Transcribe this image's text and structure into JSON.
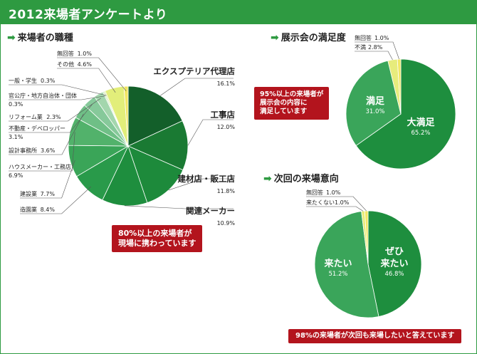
{
  "header": {
    "title": "2012来場者アンケートより"
  },
  "sections": {
    "occupation": {
      "title": "来場者の職種"
    },
    "satisfaction": {
      "title": "展示会の満足度"
    },
    "revisit": {
      "title": "次回の来場意向"
    }
  },
  "callouts": {
    "occupation": [
      "80%以上の来場者が",
      "現場に携わっています"
    ],
    "satisfaction": [
      "95%以上の来場者が",
      "展示会の内容に",
      "満足しています"
    ],
    "revisit": [
      "98%の来場者が次回も来場したいと答えています"
    ]
  },
  "colors": {
    "header": "#2e9a41",
    "callout": "#b3141d"
  },
  "chart_data": [
    {
      "type": "pie",
      "title": "来場者の職種",
      "slices": [
        {
          "label": "エクスプテリア代理店",
          "value": 16.1,
          "pct": "16.1%",
          "color": "#135f2a"
        },
        {
          "label": "工事店",
          "value": 12.0,
          "pct": "12.0%",
          "color": "#1a7a33"
        },
        {
          "label": "建材店・販工店",
          "value": 11.8,
          "pct": "11.8%",
          "color": "#1d8a3b"
        },
        {
          "label": "関連メーカー",
          "value": 10.9,
          "pct": "10.9%",
          "color": "#1e8e3e"
        },
        {
          "label": "造園業",
          "value": 8.4,
          "pct": "8.4%",
          "color": "#299a4a"
        },
        {
          "label": "建設業",
          "value": 7.7,
          "pct": "7.7%",
          "color": "#3aa558"
        },
        {
          "label": "ハウスメーカー・工務店",
          "value": 6.9,
          "pct": "6.9%",
          "color": "#52b26b"
        },
        {
          "label": "設計事務所",
          "value": 3.6,
          "pct": "3.6%",
          "color": "#6fbf86"
        },
        {
          "label": "不動産・デベロッパー",
          "value": 3.1,
          "pct": "3.1%",
          "color": "#86c99a"
        },
        {
          "label": "リフォーム業",
          "value": 2.3,
          "pct": "2.3%",
          "color": "#a3d6ad"
        },
        {
          "label": "官公庁・地方自治体・団体",
          "value": 0.3,
          "pct": "0.3%",
          "color": "#c4e3b8"
        },
        {
          "label": "一般・学生",
          "value": 0.3,
          "pct": "0.3%",
          "color": "#d7ec9a"
        },
        {
          "label": "その他",
          "value": 4.6,
          "pct": "4.6%",
          "color": "#e2ee7a"
        },
        {
          "label": "無回答",
          "value": 1.0,
          "pct": "1.0%",
          "color": "#f1e663"
        }
      ]
    },
    {
      "type": "pie",
      "title": "展示会の満足度",
      "slices": [
        {
          "label": "大満足",
          "value": 65.2,
          "pct": "65.2%",
          "color": "#1e8e3e"
        },
        {
          "label": "満足",
          "value": 31.0,
          "pct": "31.0%",
          "color": "#3aa55a"
        },
        {
          "label": "不満",
          "value": 2.8,
          "pct": "2.8%",
          "color": "#e7ec7c"
        },
        {
          "label": "無回答",
          "value": 1.0,
          "pct": "1.0%",
          "color": "#f1e663"
        }
      ]
    },
    {
      "type": "pie",
      "title": "次回の来場意向",
      "slices": [
        {
          "label": "ぜひ来たい",
          "value": 46.8,
          "pct": "46.8%",
          "color": "#1e8e3e"
        },
        {
          "label": "来たい",
          "value": 51.2,
          "pct": "51.2%",
          "color": "#3aa55a"
        },
        {
          "label": "来たくない",
          "value": 1.0,
          "pct": "1.0%",
          "color": "#e7ec7c"
        },
        {
          "label": "無回答",
          "value": 1.0,
          "pct": "1.0%",
          "color": "#f1e663"
        }
      ]
    }
  ]
}
